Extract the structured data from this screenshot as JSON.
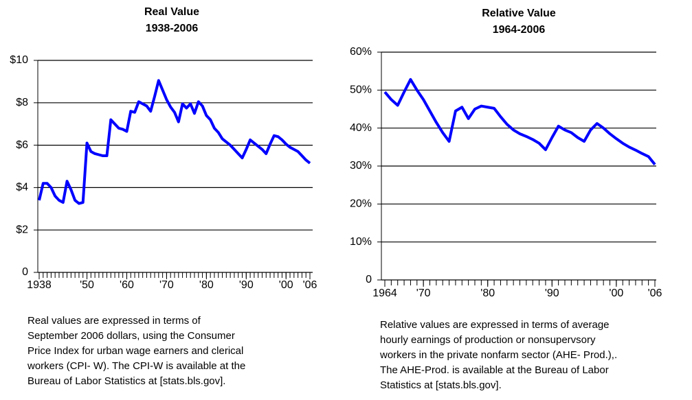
{
  "chart_data": [
    {
      "type": "line",
      "title": "Real Value",
      "subtitle": "1938-2006",
      "x": [
        1938,
        1939,
        1940,
        1941,
        1942,
        1943,
        1944,
        1945,
        1946,
        1947,
        1948,
        1949,
        1950,
        1951,
        1952,
        1953,
        1954,
        1955,
        1956,
        1957,
        1958,
        1959,
        1960,
        1961,
        1962,
        1963,
        1964,
        1965,
        1966,
        1967,
        1968,
        1969,
        1970,
        1971,
        1972,
        1973,
        1974,
        1975,
        1976,
        1977,
        1978,
        1979,
        1980,
        1981,
        1982,
        1983,
        1984,
        1985,
        1986,
        1987,
        1988,
        1989,
        1990,
        1991,
        1992,
        1993,
        1994,
        1995,
        1996,
        1997,
        1998,
        1999,
        2000,
        2001,
        2002,
        2003,
        2004,
        2005,
        2006
      ],
      "series": [
        {
          "color": "#0000ff",
          "values": [
            3.4,
            4.2,
            4.2,
            4.0,
            3.6,
            3.4,
            3.3,
            4.3,
            3.9,
            3.4,
            3.25,
            3.3,
            6.1,
            5.7,
            5.6,
            5.55,
            5.5,
            5.5,
            7.2,
            7.0,
            6.8,
            6.75,
            6.65,
            7.6,
            7.55,
            8.05,
            7.95,
            7.85,
            7.6,
            8.3,
            9.05,
            8.6,
            8.15,
            7.8,
            7.55,
            7.1,
            7.95,
            7.75,
            7.95,
            7.5,
            8.05,
            7.85,
            7.4,
            7.2,
            6.8,
            6.6,
            6.3,
            6.15,
            6.0,
            5.8,
            5.6,
            5.4,
            5.8,
            6.25,
            6.1,
            5.95,
            5.8,
            5.6,
            6.05,
            6.45,
            6.4,
            6.25,
            6.05,
            5.9,
            5.8,
            5.7,
            5.5,
            5.3,
            5.15
          ]
        }
      ],
      "xlim": [
        1938,
        2006
      ],
      "xticks": [
        1938,
        {
          "value": 1950,
          "label": "'50"
        },
        {
          "value": 1960,
          "label": "'60"
        },
        {
          "value": 1970,
          "label": "'70"
        },
        {
          "value": 1980,
          "label": "'80"
        },
        {
          "value": 1990,
          "label": "'90"
        },
        {
          "value": 2000,
          "label": "'00"
        },
        {
          "value": 2006,
          "label": "'06"
        }
      ],
      "ylim": [
        0,
        10
      ],
      "yticks": [
        0,
        {
          "value": 2,
          "label": "$2"
        },
        {
          "value": 4,
          "label": "$4"
        },
        {
          "value": 6,
          "label": "$6"
        },
        {
          "value": 8,
          "label": "$8"
        },
        {
          "value": 10,
          "label": "$10"
        }
      ],
      "grid": true,
      "caption": [
        "Real values are expressed in terms of",
        "September 2006 dollars, using the Consumer",
        "Price Index for urban wage earners and clerical",
        "workers (CPI- W).  The CPI-W is available at the",
        "Bureau of Labor Statistics at [stats.bls.gov]."
      ]
    },
    {
      "type": "line",
      "title": "Relative Value",
      "subtitle": "1964-2006",
      "x": [
        1964,
        1965,
        1966,
        1967,
        1968,
        1969,
        1970,
        1971,
        1972,
        1973,
        1974,
        1975,
        1976,
        1977,
        1978,
        1979,
        1980,
        1981,
        1982,
        1983,
        1984,
        1985,
        1986,
        1987,
        1988,
        1989,
        1990,
        1991,
        1992,
        1993,
        1994,
        1995,
        1996,
        1997,
        1998,
        1999,
        2000,
        2001,
        2002,
        2003,
        2004,
        2005,
        2006
      ],
      "series": [
        {
          "color": "#0000ff",
          "values": [
            49.5,
            47.5,
            46,
            49.5,
            52.8,
            50,
            47.5,
            44.5,
            41.5,
            38.8,
            36.5,
            44.5,
            45.5,
            42.5,
            45,
            45.8,
            45.5,
            45.2,
            43,
            41,
            39.5,
            38.5,
            37.8,
            37,
            36,
            34.3,
            37.5,
            40.5,
            39.5,
            38.8,
            37.5,
            36.5,
            39.5,
            41.2,
            40,
            38.5,
            37.2,
            36,
            35,
            34.2,
            33.3,
            32.5,
            30.4
          ]
        }
      ],
      "xlim": [
        1964,
        2006
      ],
      "xticks": [
        1964,
        {
          "value": 1970,
          "label": "'70"
        },
        {
          "value": 1980,
          "label": "'80"
        },
        {
          "value": 1990,
          "label": "'90"
        },
        {
          "value": 2000,
          "label": "'00"
        },
        {
          "value": 2006,
          "label": "'06"
        }
      ],
      "ylim": [
        0,
        60
      ],
      "yticks": [
        0,
        {
          "value": 10,
          "label": "10%"
        },
        {
          "value": 20,
          "label": "20%"
        },
        {
          "value": 30,
          "label": "30%"
        },
        {
          "value": 40,
          "label": "40%"
        },
        {
          "value": 50,
          "label": "50%"
        },
        {
          "value": 60,
          "label": "60%"
        }
      ],
      "grid": true,
      "caption": [
        "Relative values are expressed in terms of average",
        "hourly earnings of production or nonsupervsory",
        "workers in the private nonfarm sector (AHE- Prod.),.",
        "The AHE-Prod. is available at the Bureau of Labor",
        "Statistics at [stats.bls.gov]."
      ]
    }
  ]
}
